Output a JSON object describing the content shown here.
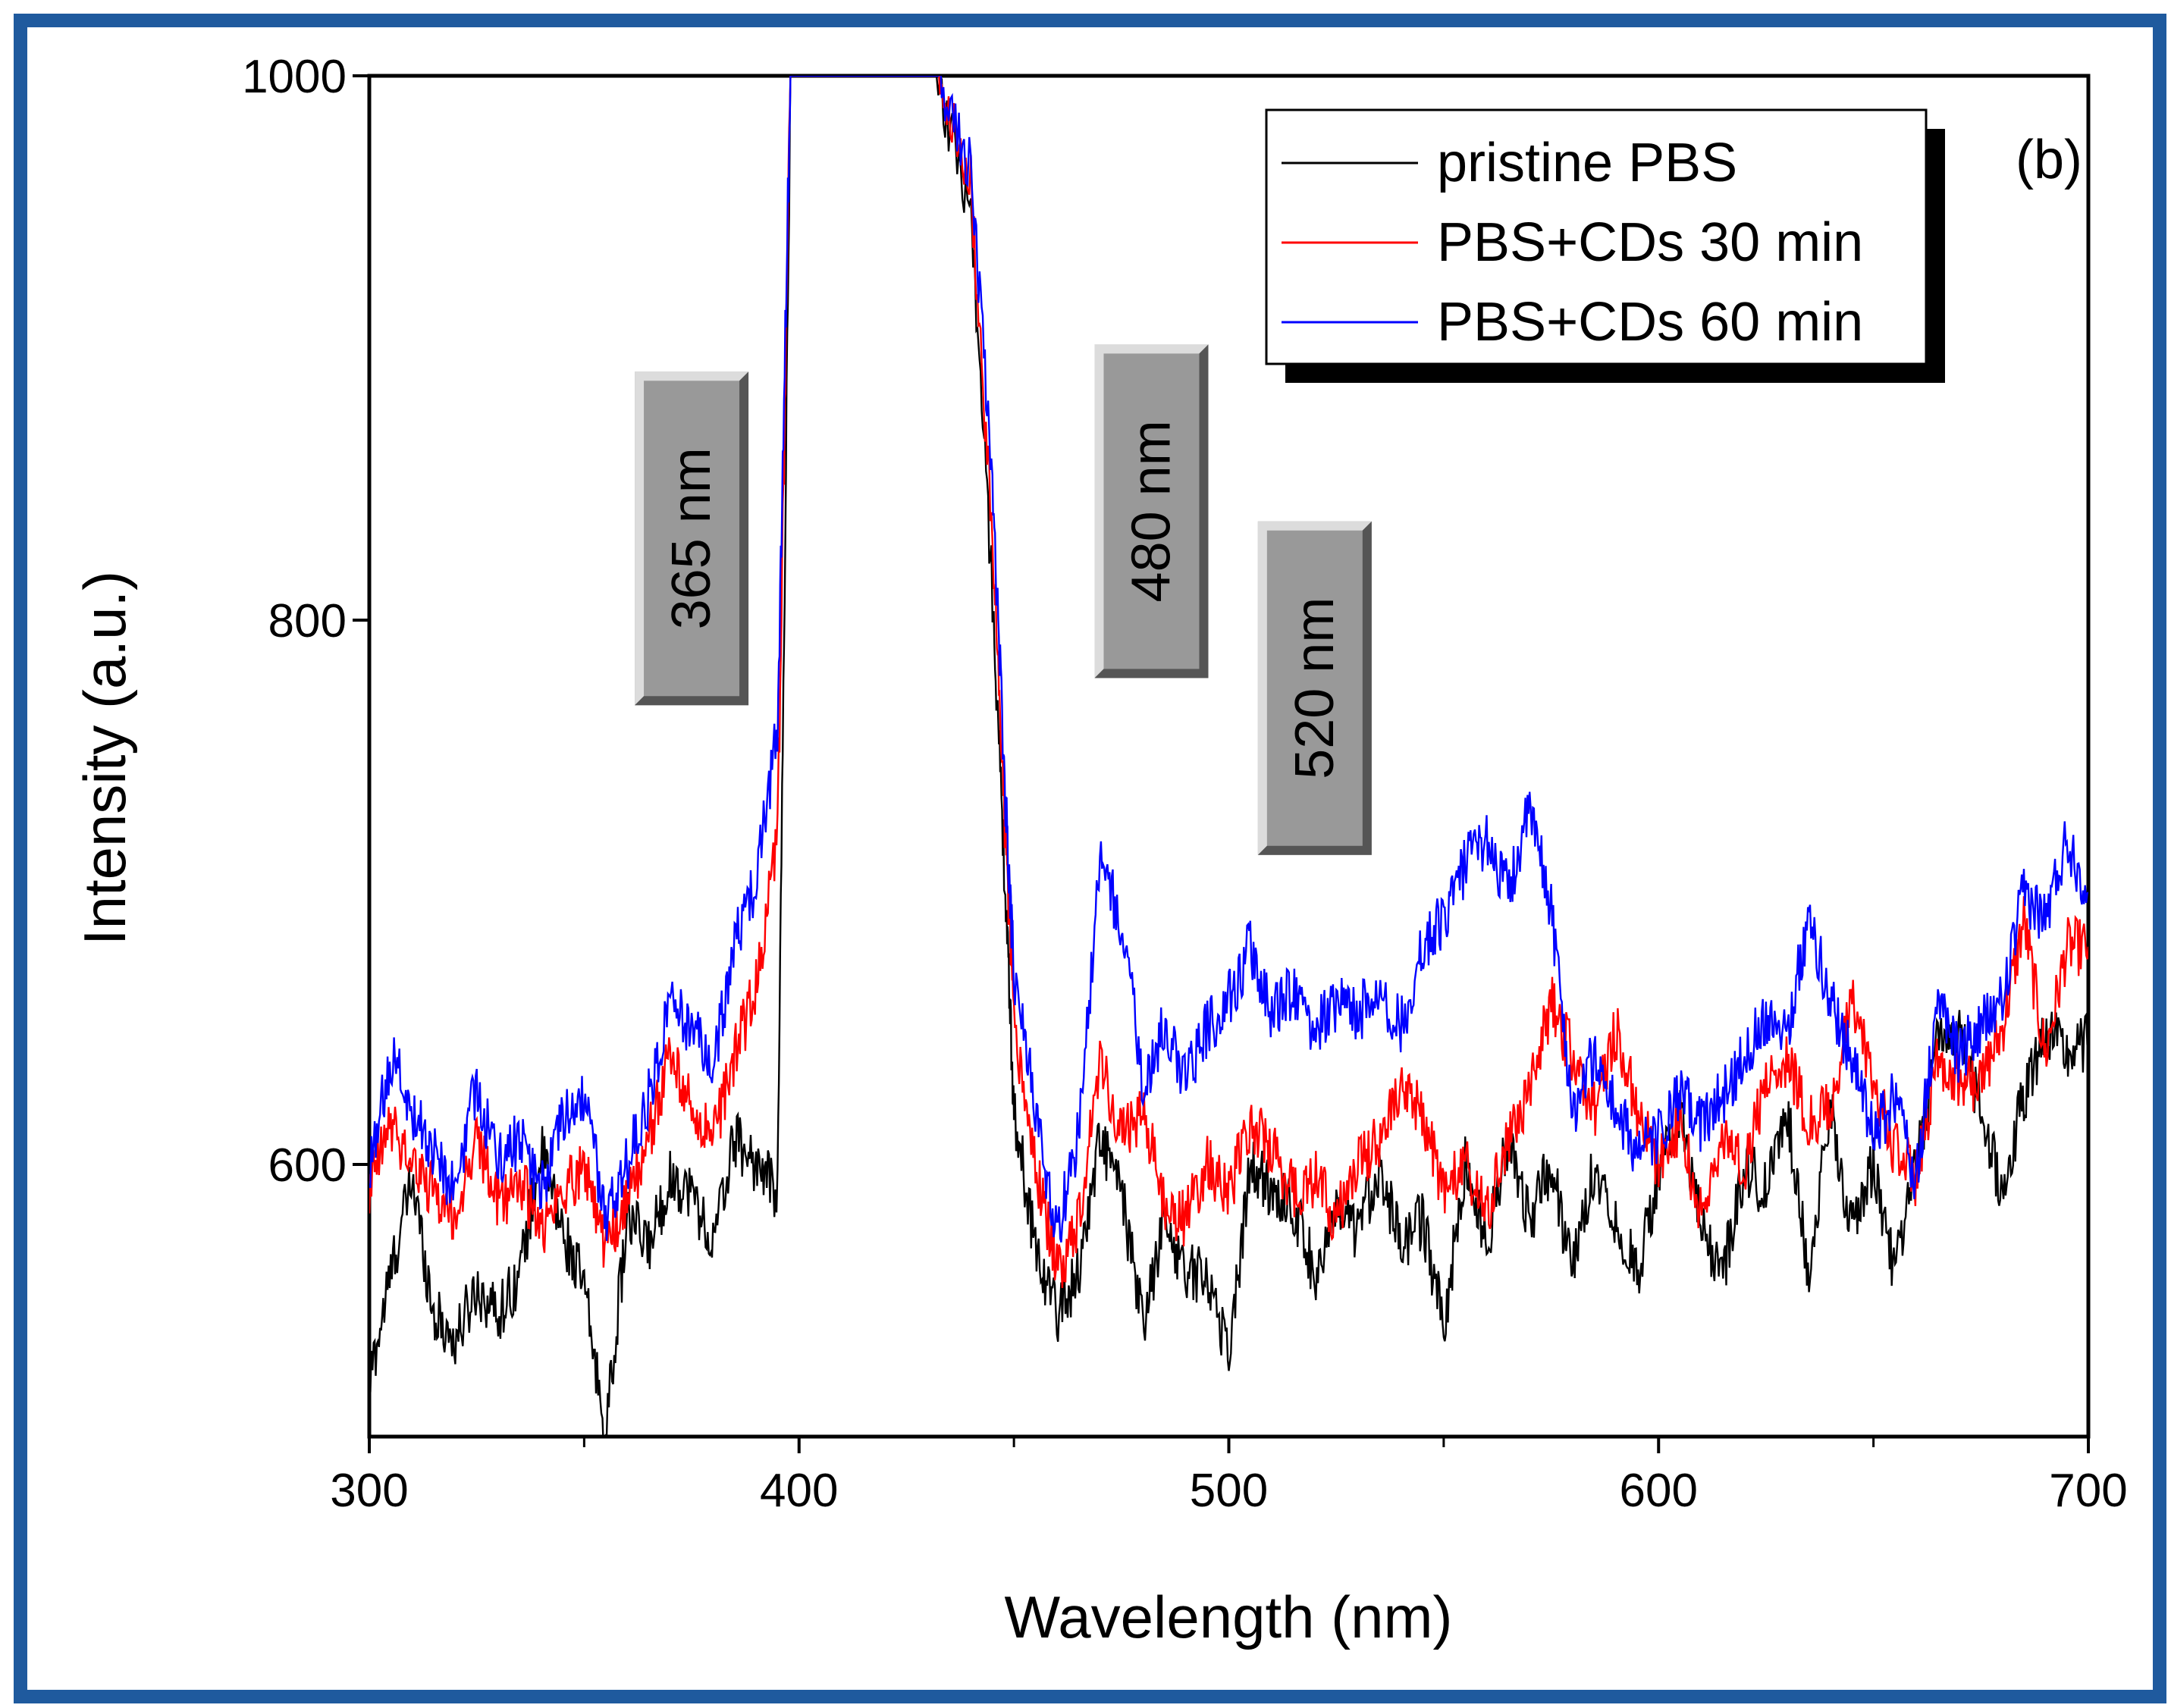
{
  "chart_data": {
    "type": "line",
    "panel_label": "(b)",
    "xlabel": "Wavelength (nm)",
    "ylabel": "Intensity (a.u.)",
    "xlim": [
      300,
      700
    ],
    "ylim": [
      500,
      1000
    ],
    "xticks": [
      300,
      400,
      500,
      600,
      700
    ],
    "yticks": [
      600,
      800,
      1000
    ],
    "colors": {
      "frame": "#1f5a9e",
      "callout": "#999999"
    },
    "annotations": [
      {
        "text": "365 nm",
        "x": 375,
        "y": 830
      },
      {
        "text": "480 nm",
        "x": 482,
        "y": 840
      },
      {
        "text": "520 nm",
        "x": 520,
        "y": 775
      }
    ],
    "series": [
      {
        "name": "pristine PBS",
        "color": "#000000",
        "points": [
          [
            300,
            520
          ],
          [
            305,
            560
          ],
          [
            310,
            595
          ],
          [
            315,
            545
          ],
          [
            320,
            535
          ],
          [
            325,
            555
          ],
          [
            330,
            545
          ],
          [
            335,
            560
          ],
          [
            340,
            605
          ],
          [
            345,
            575
          ],
          [
            350,
            555
          ],
          [
            355,
            500
          ],
          [
            360,
            580
          ],
          [
            365,
            570
          ],
          [
            370,
            595
          ],
          [
            375,
            590
          ],
          [
            380,
            570
          ],
          [
            385,
            610
          ],
          [
            390,
            600
          ],
          [
            395,
            590
          ],
          [
            398,
            1000
          ],
          [
            432,
            1000
          ],
          [
            440,
            950
          ],
          [
            445,
            810
          ],
          [
            448,
            700
          ],
          [
            450,
            620
          ],
          [
            455,
            570
          ],
          [
            460,
            545
          ],
          [
            465,
            560
          ],
          [
            470,
            610
          ],
          [
            475,
            590
          ],
          [
            480,
            540
          ],
          [
            485,
            580
          ],
          [
            490,
            560
          ],
          [
            495,
            560
          ],
          [
            500,
            530
          ],
          [
            505,
            600
          ],
          [
            510,
            590
          ],
          [
            515,
            585
          ],
          [
            520,
            560
          ],
          [
            525,
            580
          ],
          [
            530,
            575
          ],
          [
            535,
            600
          ],
          [
            540,
            570
          ],
          [
            545,
            580
          ],
          [
            550,
            540
          ],
          [
            555,
            600
          ],
          [
            560,
            570
          ],
          [
            565,
            610
          ],
          [
            570,
            580
          ],
          [
            575,
            600
          ],
          [
            580,
            560
          ],
          [
            585,
            600
          ],
          [
            590,
            580
          ],
          [
            595,
            560
          ],
          [
            600,
            595
          ],
          [
            605,
            620
          ],
          [
            610,
            575
          ],
          [
            615,
            560
          ],
          [
            620,
            600
          ],
          [
            625,
            590
          ],
          [
            630,
            620
          ],
          [
            635,
            560
          ],
          [
            640,
            620
          ],
          [
            645,
            575
          ],
          [
            650,
            600
          ],
          [
            655,
            560
          ],
          [
            660,
            600
          ],
          [
            665,
            645
          ],
          [
            670,
            650
          ],
          [
            675,
            620
          ],
          [
            680,
            590
          ],
          [
            685,
            625
          ],
          [
            690,
            650
          ],
          [
            695,
            640
          ],
          [
            700,
            645
          ]
        ]
      },
      {
        "name": "PBS+CDs 30 min",
        "color": "#ff0000",
        "points": [
          [
            300,
            590
          ],
          [
            305,
            615
          ],
          [
            310,
            600
          ],
          [
            315,
            590
          ],
          [
            320,
            580
          ],
          [
            325,
            610
          ],
          [
            330,
            585
          ],
          [
            335,
            595
          ],
          [
            340,
            575
          ],
          [
            345,
            590
          ],
          [
            350,
            600
          ],
          [
            355,
            570
          ],
          [
            360,
            585
          ],
          [
            365,
            610
          ],
          [
            370,
            640
          ],
          [
            375,
            620
          ],
          [
            380,
            610
          ],
          [
            385,
            640
          ],
          [
            390,
            665
          ],
          [
            395,
            720
          ],
          [
            398,
            1000
          ],
          [
            432,
            1000
          ],
          [
            440,
            960
          ],
          [
            445,
            830
          ],
          [
            448,
            720
          ],
          [
            450,
            650
          ],
          [
            455,
            600
          ],
          [
            460,
            560
          ],
          [
            465,
            580
          ],
          [
            470,
            640
          ],
          [
            475,
            610
          ],
          [
            480,
            620
          ],
          [
            485,
            585
          ],
          [
            490,
            580
          ],
          [
            495,
            600
          ],
          [
            500,
            590
          ],
          [
            505,
            615
          ],
          [
            510,
            605
          ],
          [
            515,
            590
          ],
          [
            520,
            595
          ],
          [
            525,
            580
          ],
          [
            530,
            600
          ],
          [
            535,
            610
          ],
          [
            540,
            625
          ],
          [
            545,
            620
          ],
          [
            550,
            590
          ],
          [
            555,
            600
          ],
          [
            560,
            580
          ],
          [
            565,
            610
          ],
          [
            570,
            625
          ],
          [
            575,
            660
          ],
          [
            580,
            640
          ],
          [
            585,
            620
          ],
          [
            590,
            650
          ],
          [
            595,
            620
          ],
          [
            600,
            600
          ],
          [
            605,
            615
          ],
          [
            610,
            580
          ],
          [
            615,
            610
          ],
          [
            620,
            600
          ],
          [
            625,
            630
          ],
          [
            630,
            640
          ],
          [
            635,
            615
          ],
          [
            640,
            620
          ],
          [
            645,
            660
          ],
          [
            650,
            630
          ],
          [
            655,
            605
          ],
          [
            660,
            595
          ],
          [
            665,
            640
          ],
          [
            670,
            630
          ],
          [
            675,
            630
          ],
          [
            680,
            650
          ],
          [
            685,
            690
          ],
          [
            690,
            640
          ],
          [
            695,
            680
          ],
          [
            700,
            680
          ]
        ]
      },
      {
        "name": "PBS+CDs 60 min",
        "color": "#0000ff",
        "points": [
          [
            300,
            595
          ],
          [
            305,
            640
          ],
          [
            310,
            620
          ],
          [
            315,
            605
          ],
          [
            320,
            590
          ],
          [
            325,
            630
          ],
          [
            330,
            600
          ],
          [
            335,
            610
          ],
          [
            340,
            590
          ],
          [
            345,
            615
          ],
          [
            350,
            625
          ],
          [
            355,
            580
          ],
          [
            360,
            600
          ],
          [
            365,
            625
          ],
          [
            370,
            660
          ],
          [
            375,
            650
          ],
          [
            380,
            635
          ],
          [
            385,
            680
          ],
          [
            390,
            705
          ],
          [
            395,
            760
          ],
          [
            398,
            1000
          ],
          [
            432,
            1000
          ],
          [
            440,
            965
          ],
          [
            445,
            850
          ],
          [
            448,
            735
          ],
          [
            450,
            670
          ],
          [
            455,
            620
          ],
          [
            460,
            575
          ],
          [
            465,
            610
          ],
          [
            470,
            710
          ],
          [
            475,
            690
          ],
          [
            480,
            630
          ],
          [
            485,
            650
          ],
          [
            490,
            630
          ],
          [
            495,
            650
          ],
          [
            500,
            660
          ],
          [
            505,
            680
          ],
          [
            510,
            655
          ],
          [
            515,
            665
          ],
          [
            520,
            650
          ],
          [
            525,
            660
          ],
          [
            530,
            655
          ],
          [
            535,
            665
          ],
          [
            540,
            650
          ],
          [
            545,
            680
          ],
          [
            550,
            690
          ],
          [
            555,
            710
          ],
          [
            560,
            720
          ],
          [
            565,
            700
          ],
          [
            570,
            730
          ],
          [
            575,
            695
          ],
          [
            580,
            620
          ],
          [
            585,
            640
          ],
          [
            590,
            620
          ],
          [
            595,
            605
          ],
          [
            600,
            610
          ],
          [
            605,
            625
          ],
          [
            610,
            615
          ],
          [
            615,
            625
          ],
          [
            620,
            640
          ],
          [
            625,
            655
          ],
          [
            630,
            650
          ],
          [
            635,
            690
          ],
          [
            640,
            660
          ],
          [
            645,
            640
          ],
          [
            650,
            610
          ],
          [
            655,
            625
          ],
          [
            660,
            595
          ],
          [
            665,
            660
          ],
          [
            670,
            640
          ],
          [
            675,
            650
          ],
          [
            680,
            660
          ],
          [
            685,
            700
          ],
          [
            690,
            690
          ],
          [
            695,
            720
          ],
          [
            700,
            700
          ]
        ]
      }
    ]
  }
}
